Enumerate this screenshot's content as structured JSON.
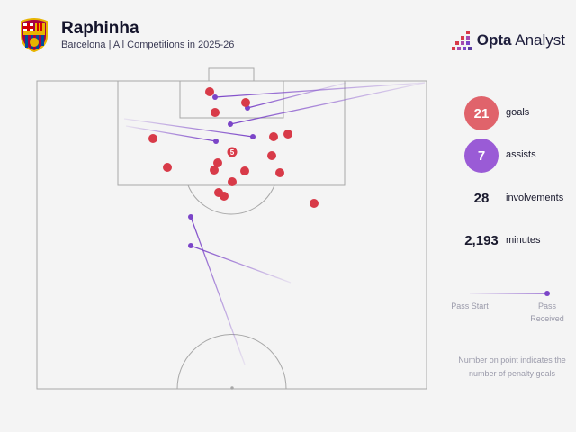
{
  "header": {
    "player_name": "Raphinha",
    "subtitle": "Barcelona | All Competitions in 2025-26",
    "club_crest": "fc-barcelona-crest",
    "brand_bold": "Opta",
    "brand_light": "Analyst"
  },
  "stats": {
    "goals": {
      "value": "21",
      "label": "goals",
      "color": "#e0636b"
    },
    "assists": {
      "value": "7",
      "label": "assists",
      "color": "#9a5bd6"
    },
    "involvements": {
      "value": "28",
      "label": "involvements"
    },
    "minutes": {
      "value": "2,193",
      "label": "minutes"
    }
  },
  "legend": {
    "pass_start": "Pass Start",
    "pass_received": "Pass Received"
  },
  "note": "Number on point indicates the number of penalty goals",
  "colors": {
    "goal": "#d83a48",
    "assist_line": "#7b45c8",
    "pitch_line": "#a8a8a8"
  }
}
